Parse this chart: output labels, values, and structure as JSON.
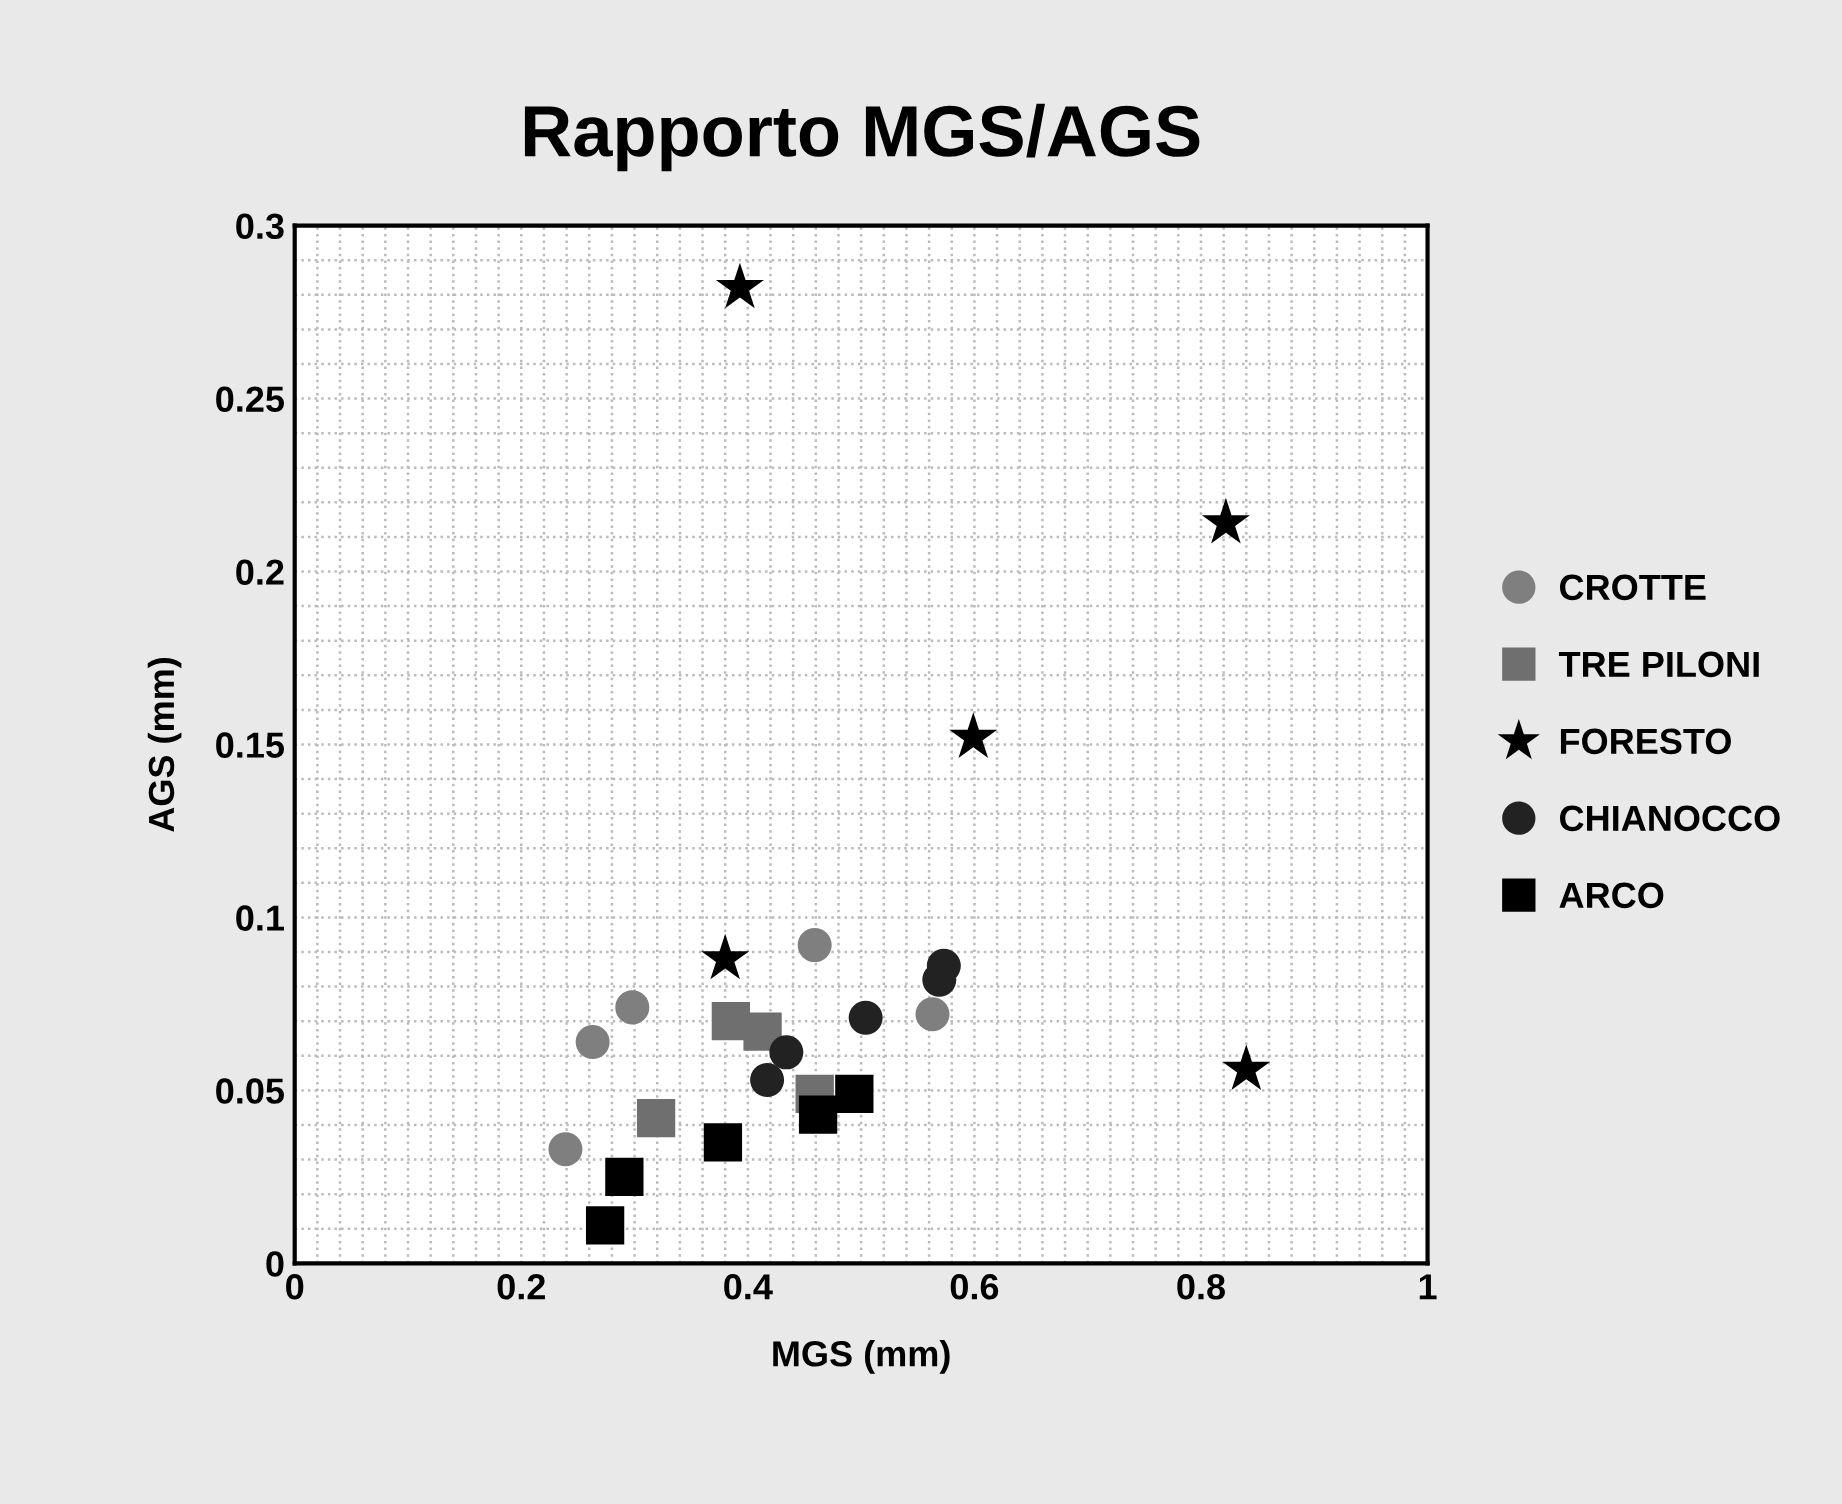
{
  "chart_data": {
    "type": "scatter",
    "title": "Rapporto MGS/AGS",
    "xlabel": "MGS (mm)",
    "ylabel": "AGS (mm)",
    "xlim": [
      0,
      1
    ],
    "xticks": [
      0,
      0.2,
      0.4,
      0.6,
      0.8,
      1
    ],
    "ylim": [
      0,
      0.3
    ],
    "yticks": [
      0,
      0.05,
      0.1,
      0.15,
      0.2,
      0.25,
      0.3
    ],
    "grid": true,
    "legend": "right",
    "series": [
      {
        "name": "CROTTE",
        "color": "#7f7f7f",
        "marker": "circle",
        "x": [
          0.239,
          0.263,
          0.298,
          0.459,
          0.563
        ],
        "values": [
          0.033,
          0.064,
          0.074,
          0.092,
          0.072
        ]
      },
      {
        "name": "TRE PILONI",
        "color": "#6f6f6f",
        "marker": "square",
        "x": [
          0.385,
          0.413,
          0.319,
          0.459
        ],
        "values": [
          0.07,
          0.067,
          0.042,
          0.049
        ]
      },
      {
        "name": "FORESTO",
        "color": "#000000",
        "marker": "star",
        "x": [
          0.38,
          0.393,
          0.599,
          0.822,
          0.84
        ],
        "values": [
          0.088,
          0.282,
          0.152,
          0.214,
          0.056
        ]
      },
      {
        "name": "CHIANOCCO",
        "color": "#222222",
        "marker": "circle",
        "x": [
          0.434,
          0.417,
          0.504,
          0.573,
          0.569
        ],
        "values": [
          0.061,
          0.053,
          0.071,
          0.086,
          0.082
        ]
      },
      {
        "name": "ARCO",
        "color": "#000000",
        "marker": "square",
        "x": [
          0.274,
          0.291,
          0.378,
          0.462,
          0.494
        ],
        "values": [
          0.011,
          0.025,
          0.035,
          0.043,
          0.049
        ]
      }
    ]
  }
}
